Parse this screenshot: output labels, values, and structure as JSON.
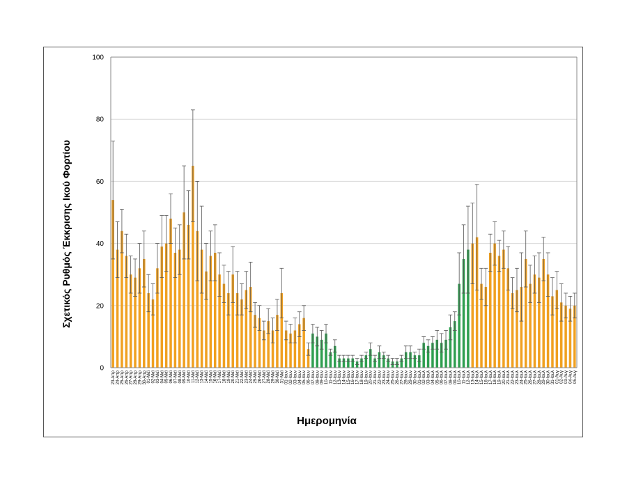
{
  "chart_data": {
    "type": "bar",
    "title": "",
    "xlabel": "Ημερομηνία",
    "ylabel": "Σχετικός Ρυθμός Έκκρισης Ικού Φορτίου",
    "ylim": [
      0,
      100
    ],
    "yticks": [
      0,
      20,
      40,
      60,
      80,
      100
    ],
    "grid": true,
    "legend": "none",
    "colors": {
      "orange": "#f0a020",
      "green": "#2e9e4f",
      "error_bar": "#555555",
      "grid": "#d9d9d9"
    },
    "categories": [
      "23-Απρ",
      "24-Απρ",
      "25-Απρ",
      "26-Απρ",
      "27-Απρ",
      "28-Απρ",
      "29-Απρ",
      "30-Απρ",
      "01-Μαϊ",
      "02-Μαϊ",
      "03-Μαϊ",
      "04-Μαϊ",
      "05-Μαϊ",
      "06-Μαϊ",
      "07-Μαϊ",
      "08-Μαϊ",
      "09-Μαϊ",
      "10-Μαϊ",
      "11-Μαϊ",
      "12-Μαϊ",
      "13-Μαϊ",
      "14-Μαϊ",
      "15-Μαϊ",
      "16-Μαϊ",
      "17-Μαϊ",
      "18-Μαϊ",
      "19-Μαϊ",
      "20-Μαϊ",
      "21-Μαϊ",
      "22-Μαϊ",
      "23-Μαϊ",
      "24-Μαϊ",
      "25-Μαϊ",
      "26-Μαϊ",
      "27-Μαϊ",
      "28-Μαϊ",
      "29-Μαϊ",
      "30-Μαϊ",
      "31-Μαϊ",
      "01-Ιουν",
      "02-Ιουν",
      "03-Ιουν",
      "04-Ιουν",
      "05-Ιουν",
      "06-Ιουν",
      "07-Ιουν",
      "08-Ιουν",
      "09-Ιουν",
      "10-Ιουν",
      "11-Ιουν",
      "12-Ιουν",
      "13-Ιουν",
      "14-Ιουν",
      "15-Ιουν",
      "16-Ιουν",
      "17-Ιουν",
      "18-Ιουν",
      "19-Ιουν",
      "20-Ιουν",
      "21-Ιουν",
      "22-Ιουν",
      "23-Ιουν",
      "24-Ιουν",
      "25-Ιουν",
      "26-Ιουν",
      "27-Ιουν",
      "28-Ιουν",
      "29-Ιουν",
      "30-Ιουν",
      "01-Ιουλ",
      "02-Ιουλ",
      "03-Ιουλ",
      "04-Ιουλ",
      "05-Ιουλ",
      "06-Ιουλ",
      "07-Ιουλ",
      "08-Ιουλ",
      "09-Ιουλ",
      "10-Ιουλ",
      "11-Ιουλ",
      "12-Ιουλ",
      "13-Ιουλ",
      "14-Ιουλ",
      "15-Ιουλ",
      "16-Ιουλ",
      "17-Ιουλ",
      "18-Ιουλ",
      "19-Ιουλ",
      "20-Ιουλ",
      "21-Ιουλ",
      "22-Ιουλ",
      "23-Ιουλ",
      "24-Ιουλ",
      "25-Ιουλ",
      "26-Ιουλ",
      "27-Ιουλ",
      "28-Ιουλ",
      "29-Ιουλ",
      "30-Ιουλ",
      "31-Ιουλ",
      "01-Αυγ",
      "02-Αυγ",
      "03-Αυγ",
      "04-Αυγ",
      "05-Αυγ"
    ],
    "values": [
      54,
      38,
      44,
      36,
      30,
      29,
      32,
      35,
      24,
      22,
      32,
      39,
      40,
      48,
      37,
      38,
      50,
      46,
      65,
      44,
      38,
      31,
      36,
      37,
      30,
      27,
      24,
      30,
      24,
      22,
      25,
      26,
      17,
      16,
      12,
      15,
      12,
      17,
      24,
      12,
      11,
      12,
      14,
      16,
      6,
      11,
      10,
      9,
      11,
      5,
      7,
      3,
      3,
      3,
      3,
      2,
      3,
      4,
      6,
      3,
      5,
      4,
      3,
      2,
      2,
      3,
      5,
      5,
      4,
      4,
      8,
      7,
      8,
      9,
      8,
      9,
      13,
      15,
      27,
      35,
      38,
      40,
      42,
      27,
      26,
      37,
      40,
      36,
      38,
      32,
      24,
      25,
      26,
      35,
      27,
      30,
      29,
      35,
      30,
      23,
      25,
      21,
      20,
      19,
      20
    ],
    "errors": [
      19,
      9,
      7,
      7,
      6,
      6,
      8,
      9,
      6,
      5,
      8,
      10,
      9,
      8,
      8,
      8,
      15,
      11,
      18,
      16,
      14,
      9,
      8,
      9,
      7,
      6,
      7,
      9,
      7,
      5,
      6,
      8,
      4,
      4,
      3,
      4,
      4,
      5,
      8,
      3,
      3,
      4,
      4,
      4,
      2,
      3,
      3,
      3,
      3,
      1,
      2,
      1,
      1,
      1,
      1,
      1,
      1,
      1,
      2,
      1,
      2,
      1,
      1,
      1,
      1,
      1,
      2,
      2,
      1,
      2,
      2,
      2,
      2,
      3,
      3,
      3,
      4,
      3,
      10,
      11,
      14,
      13,
      17,
      5,
      6,
      6,
      7,
      5,
      6,
      7,
      5,
      7,
      11,
      9,
      6,
      6,
      8,
      7,
      7,
      6,
      6,
      6,
      4,
      4,
      4
    ]
  }
}
